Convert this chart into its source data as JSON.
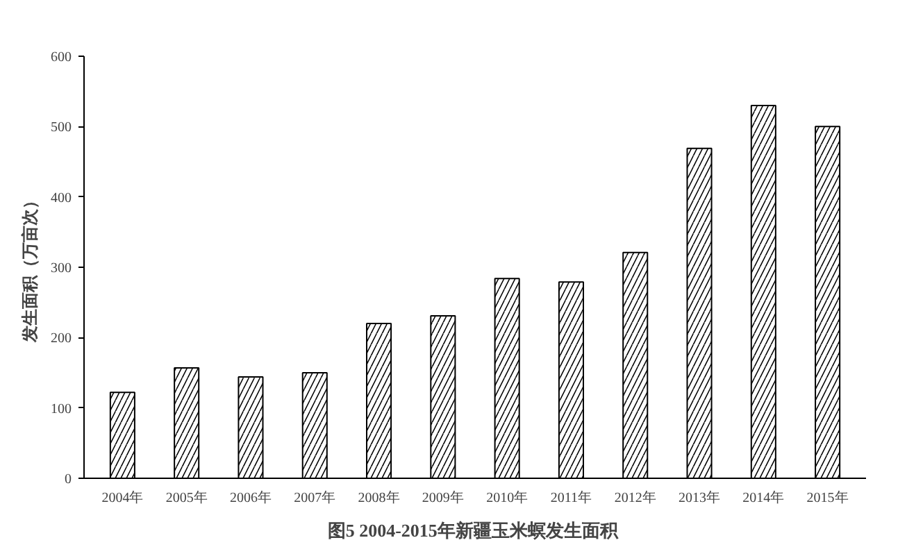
{
  "chart_data": {
    "type": "bar",
    "title": "图5  2004-2015年新疆玉米螟发生面积",
    "ylabel": "发生面积（万亩次）",
    "categories": [
      "2004年",
      "2005年",
      "2006年",
      "2007年",
      "2008年",
      "2009年",
      "2010年",
      "2011年",
      "2012年",
      "2013年",
      "2014年",
      "2015年"
    ],
    "values": [
      122,
      157,
      144,
      150,
      220,
      231,
      284,
      279,
      321,
      469,
      530,
      500
    ],
    "color": "#ffffff",
    "ylim": [
      0,
      600
    ],
    "yticks": [
      0,
      100,
      200,
      300,
      400,
      500,
      600
    ],
    "grid": false
  }
}
